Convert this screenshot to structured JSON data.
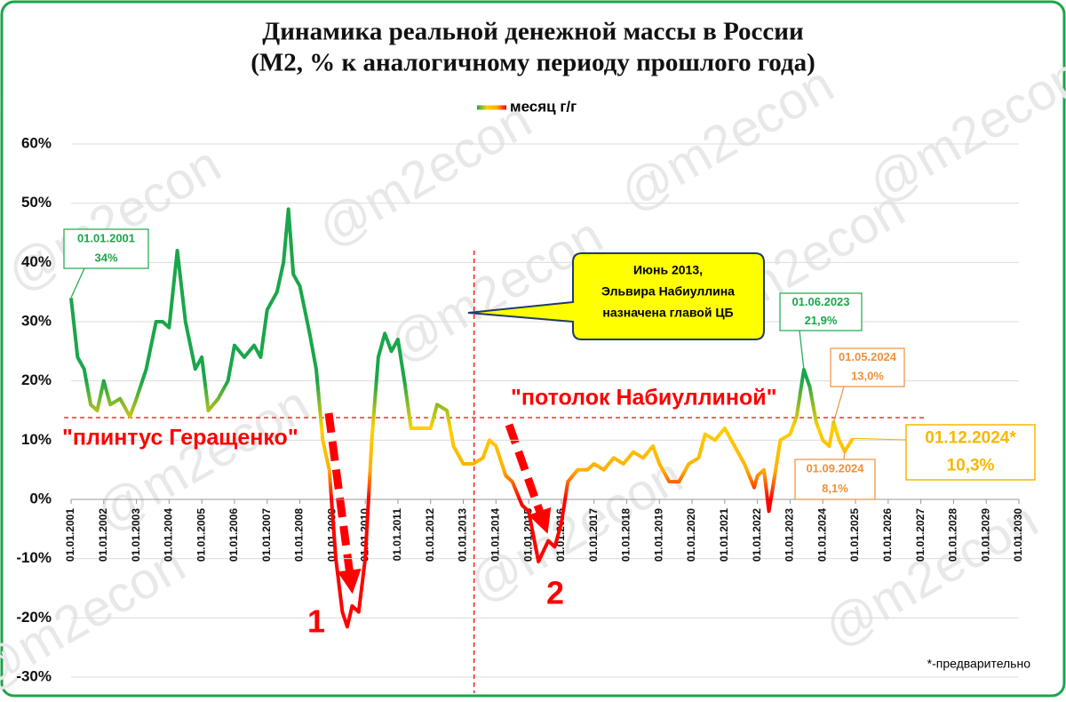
{
  "chart_data": {
    "type": "line",
    "title": "Динамика реальной денежной массы в России",
    "subtitle": "(М2, % к аналогичному периоду прошлого года)",
    "watermark": "@m2econ",
    "footnote": "*-предварительно",
    "x": [
      2001,
      2001.2,
      2001.4,
      2001.6,
      2001.8,
      2002,
      2002.2,
      2002.5,
      2002.8,
      2003,
      2003.3,
      2003.6,
      2003.8,
      2004,
      2004.25,
      2004.5,
      2004.8,
      2005,
      2005.2,
      2005.5,
      2005.8,
      2006,
      2006.3,
      2006.6,
      2006.8,
      2007,
      2007.3,
      2007.5,
      2007.65,
      2007.8,
      2008,
      2008.3,
      2008.5,
      2008.7,
      2008.9,
      2009.1,
      2009.3,
      2009.45,
      2009.6,
      2009.8,
      2010,
      2010.2,
      2010.4,
      2010.6,
      2010.8,
      2011,
      2011.2,
      2011.4,
      2011.6,
      2011.8,
      2012,
      2012.2,
      2012.5,
      2012.7,
      2013,
      2013.3,
      2013.6,
      2013.8,
      2014,
      2014.3,
      2014.5,
      2014.8,
      2015,
      2015.3,
      2015.6,
      2015.8,
      2016,
      2016.2,
      2016.5,
      2016.8,
      2017,
      2017.3,
      2017.6,
      2017.9,
      2018.2,
      2018.5,
      2018.8,
      2019,
      2019.3,
      2019.6,
      2019.9,
      2020.2,
      2020.4,
      2020.7,
      2021,
      2021.3,
      2021.6,
      2021.9,
      2022,
      2022.2,
      2022.35,
      2022.5,
      2022.7,
      2023,
      2023.2,
      2023.42,
      2023.6,
      2023.8,
      2024,
      2024.2,
      2024.33,
      2024.5,
      2024.67,
      2024.92
    ],
    "series": [
      {
        "name": "месяц г/г",
        "values": [
          34,
          24,
          22,
          16,
          15,
          20,
          16,
          17,
          14,
          17,
          22,
          30,
          30,
          29,
          42,
          30,
          22,
          24,
          15,
          17,
          20,
          26,
          24,
          26,
          24,
          32,
          35,
          40,
          49,
          38,
          36,
          28,
          22,
          10,
          5,
          -10,
          -19,
          -21.5,
          -18,
          -19,
          -10,
          10,
          24,
          28,
          25,
          27,
          20,
          12,
          12,
          12,
          12,
          16,
          15,
          9,
          6,
          6,
          7,
          10,
          9,
          4,
          3,
          -1,
          -2,
          -10.5,
          -7,
          -8,
          -4,
          3,
          5,
          5,
          6,
          5,
          7,
          6,
          8,
          7,
          9,
          6,
          3,
          3,
          6,
          7,
          11,
          10,
          12,
          9,
          6,
          2,
          4,
          5,
          -2,
          3,
          10,
          11,
          14,
          21.9,
          19,
          13,
          10,
          9,
          13,
          10,
          8.1,
          10.3
        ]
      }
    ],
    "color_scale": [
      {
        "value": 20,
        "color": "#1aa64a"
      },
      {
        "value": 12,
        "color": "#ffd000"
      },
      {
        "value": 5,
        "color": "#ffb000"
      },
      {
        "value": 0,
        "color": "#ff0000"
      }
    ],
    "xlim": [
      2001,
      2030
    ],
    "ylim": [
      -30,
      60
    ],
    "yticks": [
      {
        "value": 60,
        "label": "60%"
      },
      {
        "value": 50,
        "label": "50%"
      },
      {
        "value": 40,
        "label": "40%"
      },
      {
        "value": 30,
        "label": "30%"
      },
      {
        "value": 20,
        "label": "20%"
      },
      {
        "value": 10,
        "label": "10%"
      },
      {
        "value": 0,
        "label": "0%"
      },
      {
        "value": -10,
        "label": "-10%"
      },
      {
        "value": -20,
        "label": "-20%"
      },
      {
        "value": -30,
        "label": "-30%"
      }
    ],
    "xticks": [
      {
        "value": 2001,
        "label": "01.01.2001"
      },
      {
        "value": 2002,
        "label": "01.01.2002"
      },
      {
        "value": 2003,
        "label": "01.01.2003"
      },
      {
        "value": 2004,
        "label": "01.01.2004"
      },
      {
        "value": 2005,
        "label": "01.01.2005"
      },
      {
        "value": 2006,
        "label": "01.01.2006"
      },
      {
        "value": 2007,
        "label": "01.01.2007"
      },
      {
        "value": 2008,
        "label": "01.01.2008"
      },
      {
        "value": 2009,
        "label": "01.01.2009"
      },
      {
        "value": 2010,
        "label": "01.01.2010"
      },
      {
        "value": 2011,
        "label": "01.01.2011"
      },
      {
        "value": 2012,
        "label": "01.01.2012"
      },
      {
        "value": 2013,
        "label": "01.01.2013"
      },
      {
        "value": 2014,
        "label": "01.01.2014"
      },
      {
        "value": 2015,
        "label": "01.01.2015"
      },
      {
        "value": 2016,
        "label": "01.01.2016"
      },
      {
        "value": 2017,
        "label": "01.01.2017"
      },
      {
        "value": 2018,
        "label": "01.01.2018"
      },
      {
        "value": 2019,
        "label": "01.01.2019"
      },
      {
        "value": 2020,
        "label": "01.01.2020"
      },
      {
        "value": 2021,
        "label": "01.01.2021"
      },
      {
        "value": 2022,
        "label": "01.01.2022"
      },
      {
        "value": 2023,
        "label": "01.01.2023"
      },
      {
        "value": 2024,
        "label": "01.01.2024"
      },
      {
        "value": 2025,
        "label": "01.01.2025"
      },
      {
        "value": 2026,
        "label": "01.01.2026"
      },
      {
        "value": 2027,
        "label": "01.01.2027"
      },
      {
        "value": 2028,
        "label": "01.01.2028"
      },
      {
        "value": 2029,
        "label": "01.01.2029"
      },
      {
        "value": 2030,
        "label": "01.01.2030"
      }
    ],
    "grid": true,
    "reference_lines": {
      "y": 13.8,
      "x": 2013.33
    },
    "annotations": [
      {
        "lines": [
          "01.01.2001",
          "34%"
        ],
        "color": "#1aa64a"
      },
      {
        "lines": [
          "Июнь 2013,",
          "Эльвира  Набиуллина",
          "назначена главой ЦБ"
        ],
        "color": "#000000"
      },
      {
        "lines": [
          "01.06.2023",
          "21,9%"
        ],
        "color": "#1aa64a"
      },
      {
        "lines": [
          "01.05.2024",
          "13,0%"
        ],
        "color": "#f0903a"
      },
      {
        "lines": [
          "01.09.2024",
          "8,1%"
        ],
        "color": "#f0903a"
      },
      {
        "lines": [
          "01.12.2024*",
          "10,3%"
        ],
        "color": "#f5b800"
      },
      {
        "lines": [
          "\"потолок Набиуллиной\""
        ],
        "color": "#ff0000"
      },
      {
        "lines": [
          "\"плинтус Геращенко\""
        ],
        "color": "#ff0000"
      },
      {
        "lines": [
          "1"
        ],
        "color": "#ff0000"
      },
      {
        "lines": [
          "2"
        ],
        "color": "#ff0000"
      }
    ]
  }
}
